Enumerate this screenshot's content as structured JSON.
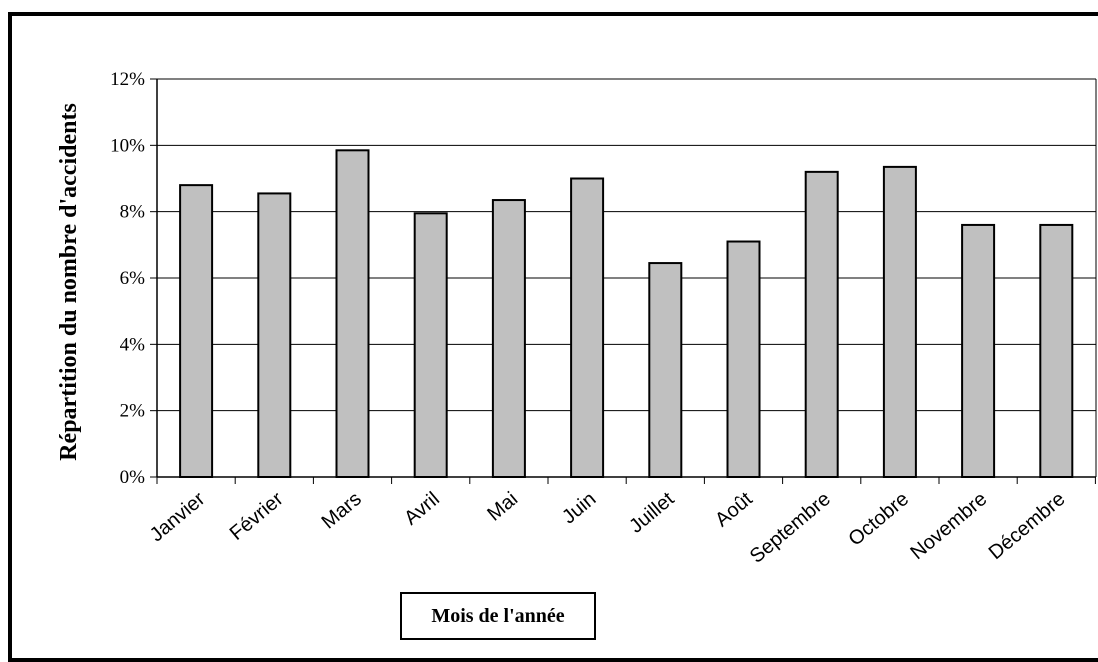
{
  "chart_data": {
    "type": "bar",
    "categories": [
      "Janvier",
      "Février",
      "Mars",
      "Avril",
      "Mai",
      "Juin",
      "Juillet",
      "Août",
      "Septembre",
      "Octobre",
      "Novembre",
      "Décembre"
    ],
    "values": [
      8.8,
      8.55,
      9.85,
      7.95,
      8.35,
      9.0,
      6.45,
      7.1,
      9.2,
      9.35,
      7.6,
      7.6
    ],
    "ylim": [
      0,
      12
    ],
    "yticks": [
      0,
      2,
      4,
      6,
      8,
      10,
      12
    ],
    "ytick_suffix": "%",
    "ylabel": "Répartition du nombre d'accidents",
    "xlabel": "Mois de l'année",
    "grid": true,
    "bar_color": "#c0c0c0",
    "bar_edge_color": "#000000"
  }
}
